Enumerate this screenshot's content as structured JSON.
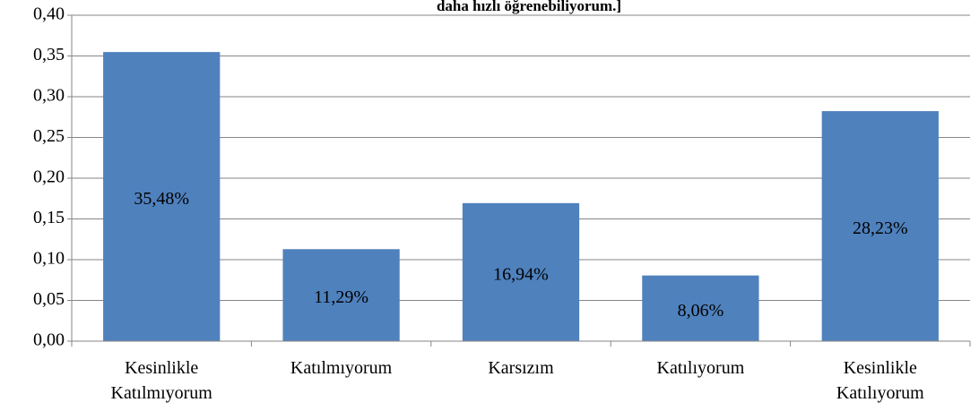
{
  "chart_data": {
    "type": "bar",
    "title": "daha hızlı öğrenebiliyorum.]",
    "categories": [
      "Kesinlikle Katılmıyorum",
      "Katılmıyorum",
      "Karsızım",
      "Katılıyorum",
      "Kesinlikle Katılıyorum"
    ],
    "values": [
      0.3548,
      0.1129,
      0.1694,
      0.0806,
      0.2823
    ],
    "value_labels": [
      "35,48%",
      "11,29%",
      "16,94%",
      "8,06%",
      "28,23%"
    ],
    "color": "#4f81bd",
    "ylim": [
      0,
      0.4
    ],
    "yticks": [
      {
        "value": 0,
        "label": "0,00"
      },
      {
        "value": 0.05,
        "label": "0,05"
      },
      {
        "value": 0.1,
        "label": "0,10"
      },
      {
        "value": 0.15,
        "label": "0,15"
      },
      {
        "value": 0.2,
        "label": "0,20"
      },
      {
        "value": 0.25,
        "label": "0,25"
      },
      {
        "value": 0.3,
        "label": "0,30"
      },
      {
        "value": 0.35,
        "label": "0,35"
      },
      {
        "value": 0.4,
        "label": "0,40"
      }
    ],
    "grid": true
  }
}
